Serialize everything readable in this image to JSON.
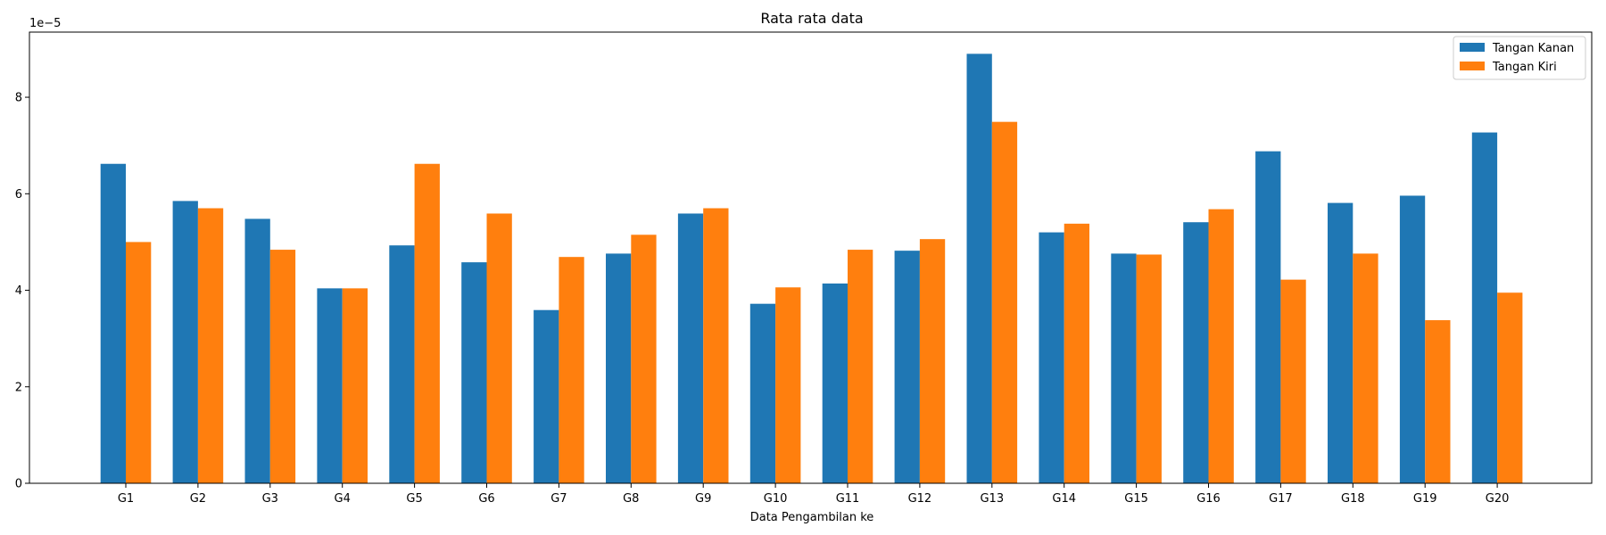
{
  "chart_data": {
    "type": "bar",
    "title": "Rata rata data",
    "xlabel": "Data Pengambilan ke",
    "ylabel": "",
    "y_offset_label": "1e−5",
    "ylim": [
      0,
      9.35
    ],
    "yticks": [
      0,
      2,
      4,
      6,
      8
    ],
    "categories": [
      "G1",
      "G2",
      "G3",
      "G4",
      "G5",
      "G6",
      "G7",
      "G8",
      "G9",
      "G10",
      "G11",
      "G12",
      "G13",
      "G14",
      "G15",
      "G16",
      "G17",
      "G18",
      "G19",
      "G20"
    ],
    "series": [
      {
        "name": "Tangan Kanan",
        "color": "#1f77b4",
        "values": [
          6.62,
          5.85,
          5.48,
          4.04,
          4.93,
          4.58,
          3.59,
          4.76,
          5.59,
          3.72,
          4.14,
          4.82,
          8.9,
          5.2,
          4.76,
          5.41,
          6.88,
          5.81,
          5.96,
          7.27
        ]
      },
      {
        "name": "Tangan Kiri",
        "color": "#ff7f0e",
        "values": [
          5.0,
          5.7,
          4.84,
          4.04,
          6.62,
          5.59,
          4.69,
          5.15,
          5.7,
          4.06,
          4.84,
          5.06,
          7.49,
          5.38,
          4.74,
          5.68,
          4.22,
          4.76,
          3.38,
          3.95
        ]
      }
    ],
    "legend_position": "top-right",
    "grid": false
  }
}
